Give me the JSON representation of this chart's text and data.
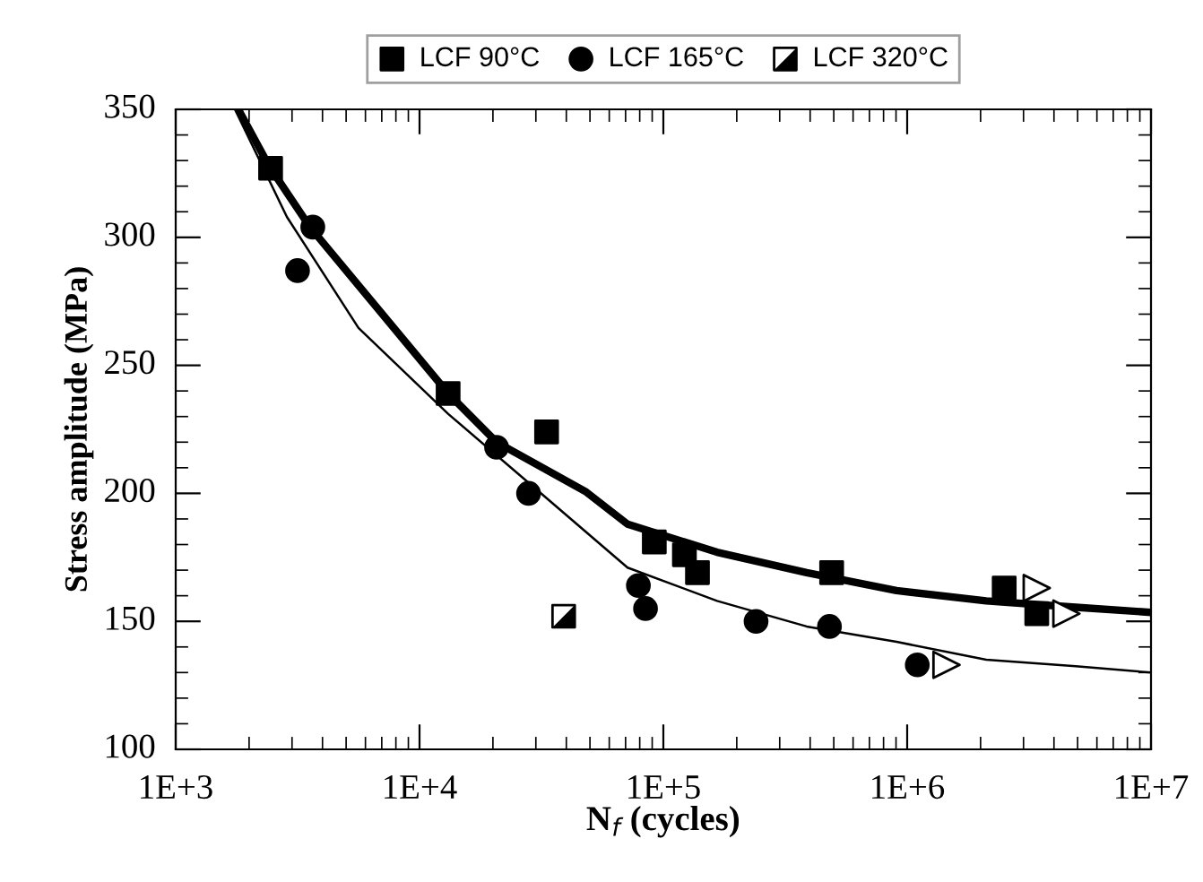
{
  "chart_data": {
    "type": "scatter",
    "xlabel": "N$_{f}$ (cycles)",
    "ylabel": "Stress amplitude (MPa)",
    "log": "x",
    "xlim": [
      1000,
      10000000
    ],
    "xticks": [
      {
        "value": 1000,
        "label": "1E+3"
      },
      {
        "value": 10000,
        "label": "1E+4"
      },
      {
        "value": 100000,
        "label": "1E+5"
      },
      {
        "value": 1000000,
        "label": "1E+6"
      },
      {
        "value": 10000000,
        "label": "1E+7"
      }
    ],
    "ylim": [
      100,
      350
    ],
    "yticks": [
      100,
      150,
      200,
      250,
      300,
      350
    ],
    "grid": false,
    "legend": "top",
    "series": [
      {
        "name": "LCF 90°C",
        "marker": "square",
        "color": "#000000",
        "x": [
          2450,
          13100,
          33200,
          91800,
          122000,
          138000,
          490000,
          2500000,
          3400000
        ],
        "values": [
          327,
          239,
          224,
          181,
          176,
          169,
          169,
          163,
          153
        ]
      },
      {
        "name": "LCF 165°C",
        "marker": "circle",
        "color": "#000000",
        "x": [
          3160,
          3650,
          20700,
          28000,
          79000,
          84500,
          240000,
          480000,
          1100000
        ],
        "values": [
          287,
          304,
          218,
          200,
          164,
          155,
          150,
          148,
          133
        ]
      },
      {
        "name": "LCF 320°C",
        "color": "#000000",
        "x": [
          39000
        ],
        "values": [
          152
        ]
      },
      {
        "marker": "triangle",
        "color": "#000000",
        "x": [
          3400000,
          4500000,
          1450000
        ],
        "values": [
          163,
          153,
          133
        ]
      },
      {
        "type": "line",
        "marker": "none",
        "color": "#000000",
        "x": [
          1807,
          2410,
          3556,
          13120,
          20700,
          48300,
          71300,
          166000,
          387000,
          904000,
          2110000,
          4910000,
          10000000
        ],
        "values": [
          350,
          328,
          304,
          239,
          220,
          200.5,
          188,
          177,
          169,
          162,
          158,
          155.5,
          153.5
        ]
      },
      {
        "type": "line",
        "marker": "none",
        "color": "#000000",
        "x": [
          1750,
          2858,
          5620,
          13120,
          30600,
          71300,
          166000,
          387000,
          904000,
          2110000,
          4910000,
          10000000
        ],
        "values": [
          350,
          308,
          264.6,
          231,
          201,
          171,
          158,
          148,
          142,
          135,
          132.5,
          130
        ]
      }
    ]
  }
}
